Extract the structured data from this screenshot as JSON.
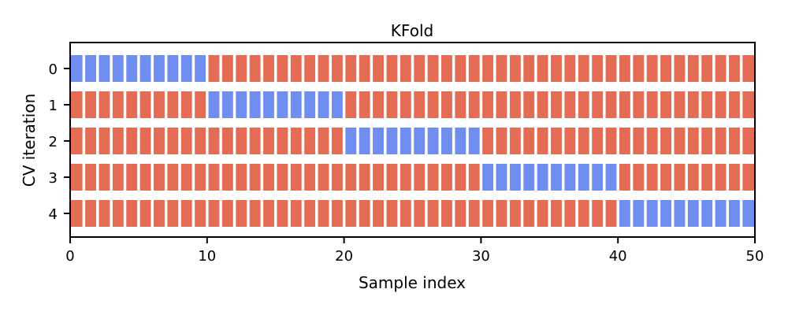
{
  "chart_data": {
    "type": "heatmap",
    "title": "KFold",
    "xlabel": "Sample index",
    "ylabel": "CV iteration",
    "xlim": [
      0,
      50
    ],
    "n_samples": 50,
    "x_ticks": [
      0,
      10,
      20,
      30,
      40,
      50
    ],
    "y_ticks": [
      0,
      1,
      2,
      3,
      4
    ],
    "grid": false,
    "colors": {
      "train": "#e46c55",
      "test": "#6f8eef",
      "axis": "#000000"
    },
    "series": [
      {
        "iteration": 0,
        "test_range": [
          0,
          9
        ]
      },
      {
        "iteration": 1,
        "test_range": [
          10,
          19
        ]
      },
      {
        "iteration": 2,
        "test_range": [
          20,
          29
        ]
      },
      {
        "iteration": 3,
        "test_range": [
          30,
          39
        ]
      },
      {
        "iteration": 4,
        "test_range": [
          40,
          49
        ]
      }
    ]
  }
}
